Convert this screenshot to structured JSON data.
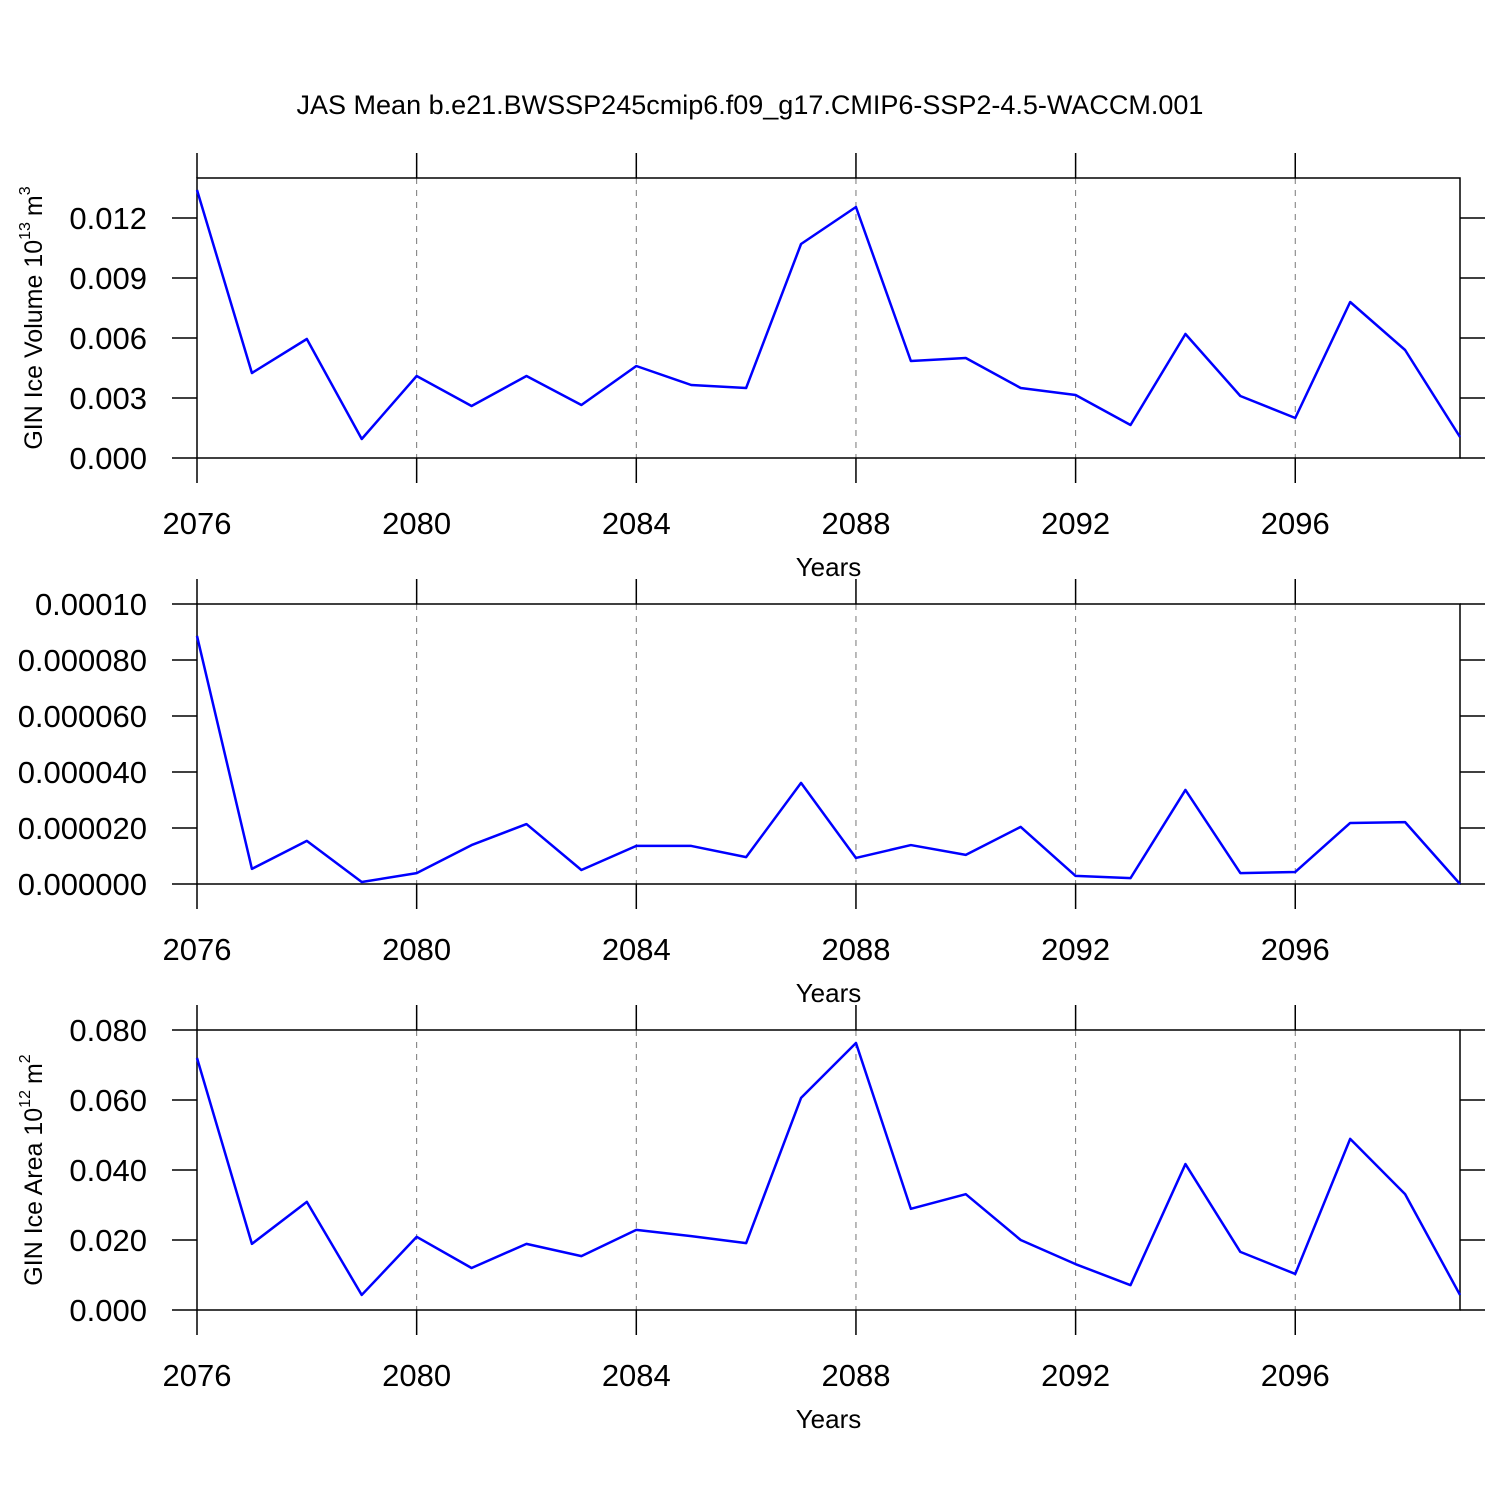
{
  "chart_data": [
    {
      "type": "line",
      "title": "JAS Mean b.e21.BWSSP245cmip6.f09_g17.CMIP6-SSP2-4.5-WACCM.001",
      "ylabel": [
        "GIN Ice Volume 10",
        "13",
        "m",
        "3"
      ],
      "xlabel": "Years",
      "color": "#0000ff",
      "grid": true,
      "x": [
        2076,
        2077,
        2078,
        2079,
        2080,
        2081,
        2082,
        2083,
        2084,
        2085,
        2086,
        2087,
        2088,
        2089,
        2090,
        2091,
        2092,
        2093,
        2094,
        2095,
        2096,
        2097,
        2098,
        2099
      ],
      "values": [
        0.0134,
        0.00425,
        0.00595,
        0.00095,
        0.0041,
        0.0026,
        0.0041,
        0.00265,
        0.0046,
        0.00365,
        0.0035,
        0.0107,
        0.01255,
        0.00485,
        0.005,
        0.0035,
        0.00315,
        0.00165,
        0.0062,
        0.0031,
        0.002,
        0.0078,
        0.0054,
        0.00105
      ],
      "xlim": [
        2076,
        2099
      ],
      "xticks": [
        2076,
        2080,
        2084,
        2088,
        2092,
        2096
      ],
      "ylim": [
        0,
        0.014
      ],
      "yticks": [
        {
          "value": 0,
          "label": "0.000"
        },
        0.003,
        0.006,
        0.009,
        0.012
      ]
    },
    {
      "type": "line",
      "xlabel": "Years",
      "color": "#0000ff",
      "grid": true,
      "x": [
        2076,
        2077,
        2078,
        2079,
        2080,
        2081,
        2082,
        2083,
        2084,
        2085,
        2086,
        2087,
        2088,
        2089,
        2090,
        2091,
        2092,
        2093,
        2094,
        2095,
        2096,
        2097,
        2098,
        2099
      ],
      "values": [
        8.86e-05,
        5.4e-06,
        1.54e-05,
        7e-07,
        3.9e-06,
        1.39e-05,
        2.14e-05,
        5e-06,
        1.36e-05,
        1.36e-05,
        9.6e-06,
        3.61e-05,
        9.3e-06,
        1.39e-05,
        1.04e-05,
        2.04e-05,
        2.9e-06,
        2.1e-06,
        3.36e-05,
        3.9e-06,
        4.3e-06,
        2.18e-05,
        2.21e-05,
        0
      ],
      "xlim": [
        2076,
        2099
      ],
      "xticks": [
        2076,
        2080,
        2084,
        2088,
        2092,
        2096
      ],
      "ylim": [
        0,
        0.0001
      ],
      "yticks": [
        {
          "value": 0,
          "label": "0.000000"
        },
        {
          "value": 2e-05,
          "label": "0.000020"
        },
        {
          "value": 4e-05,
          "label": "0.000040"
        },
        {
          "value": 6e-05,
          "label": "0.000060"
        },
        {
          "value": 8e-05,
          "label": "0.000080"
        },
        {
          "value": 0.0001,
          "label": "0.00010"
        }
      ]
    },
    {
      "type": "line",
      "ylabel": [
        "GIN Ice Area 10",
        "12",
        "m",
        "2"
      ],
      "xlabel": "Years",
      "color": "#0000ff",
      "grid": true,
      "x": [
        2076,
        2077,
        2078,
        2079,
        2080,
        2081,
        2082,
        2083,
        2084,
        2085,
        2086,
        2087,
        2088,
        2089,
        2090,
        2091,
        2092,
        2093,
        2094,
        2095,
        2096,
        2097,
        2098,
        2099
      ],
      "values": [
        0.072,
        0.0189,
        0.0309,
        0.0043,
        0.0209,
        0.012,
        0.0189,
        0.0154,
        0.0229,
        0.0211,
        0.0191,
        0.0606,
        0.0763,
        0.0289,
        0.0331,
        0.02,
        0.0131,
        0.0071,
        0.0417,
        0.0166,
        0.0103,
        0.0489,
        0.0331,
        0.0043
      ],
      "xlim": [
        2076,
        2099
      ],
      "xticks": [
        2076,
        2080,
        2084,
        2088,
        2092,
        2096
      ],
      "ylim": [
        0,
        0.08
      ],
      "yticks": [
        {
          "value": 0,
          "label": "0.000"
        },
        {
          "value": 0.02,
          "label": "0.020"
        },
        {
          "value": 0.04,
          "label": "0.040"
        },
        {
          "value": 0.06,
          "label": "0.060"
        },
        {
          "value": 0.08,
          "label": "0.080"
        }
      ]
    }
  ]
}
